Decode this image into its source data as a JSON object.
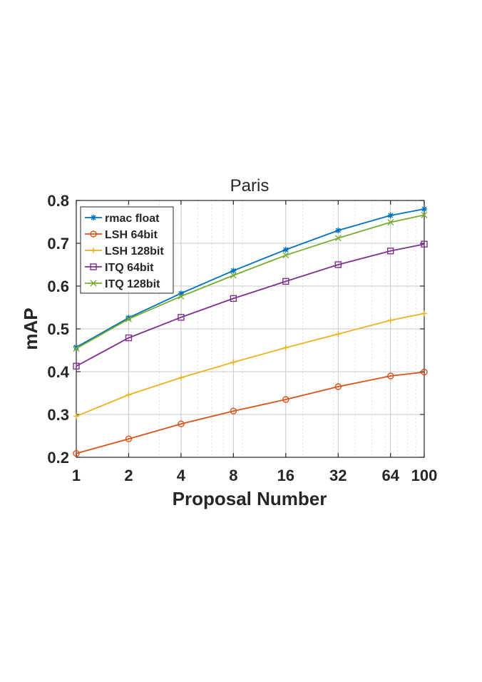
{
  "chart_data": {
    "type": "line",
    "title": "Paris",
    "xlabel": "Proposal Number",
    "ylabel": "mAP",
    "x_scale": "log",
    "x": [
      1,
      2,
      4,
      8,
      16,
      32,
      64,
      100
    ],
    "x_tick_labels": [
      "1",
      "2",
      "4",
      "8",
      "16",
      "32",
      "64",
      "100"
    ],
    "xlim": [
      1,
      100
    ],
    "ylim": [
      0.2,
      0.8
    ],
    "y_ticks": [
      0.2,
      0.3,
      0.4,
      0.5,
      0.6,
      0.7,
      0.8
    ],
    "y_tick_labels": [
      "0.2",
      "0.3",
      "0.4",
      "0.5",
      "0.6",
      "0.7",
      "0.8"
    ],
    "grid": true,
    "legend_position": "top-left",
    "series": [
      {
        "name": "rmac float",
        "color": "#0072BD",
        "marker": "asterisk",
        "values": [
          0.457,
          0.526,
          0.583,
          0.636,
          0.685,
          0.73,
          0.765,
          0.78
        ]
      },
      {
        "name": "LSH 64bit",
        "color": "#D95319",
        "marker": "circle",
        "values": [
          0.209,
          0.243,
          0.278,
          0.308,
          0.335,
          0.365,
          0.39,
          0.399
        ]
      },
      {
        "name": "LSH 128bit",
        "color": "#EDB120",
        "marker": "plus",
        "values": [
          0.296,
          0.346,
          0.386,
          0.422,
          0.456,
          0.488,
          0.52,
          0.536
        ]
      },
      {
        "name": "ITQ 64bit",
        "color": "#7E2F8E",
        "marker": "square",
        "values": [
          0.413,
          0.479,
          0.527,
          0.571,
          0.611,
          0.65,
          0.682,
          0.698
        ]
      },
      {
        "name": "ITQ 128bit",
        "color": "#77AC30",
        "marker": "x",
        "values": [
          0.454,
          0.523,
          0.576,
          0.625,
          0.672,
          0.712,
          0.749,
          0.766
        ]
      }
    ]
  }
}
